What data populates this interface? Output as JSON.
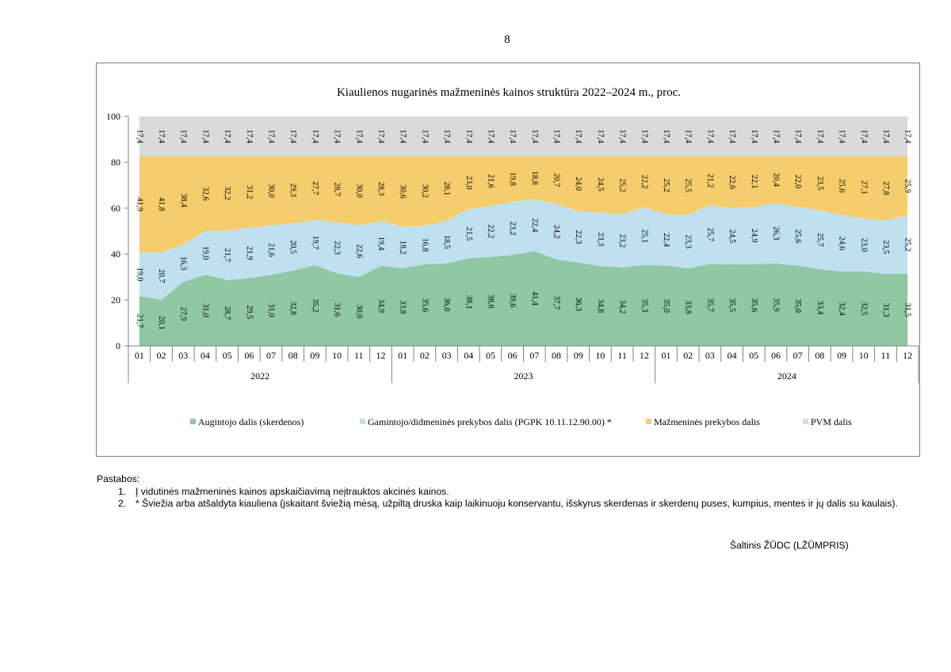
{
  "page_number": "8",
  "chart_data": {
    "type": "area",
    "stacked": true,
    "title": "Kiaulienos nugarinės mažmeninės kainos struktūra 2022–2024 m., proc.",
    "categories": [
      "01",
      "02",
      "03",
      "04",
      "05",
      "06",
      "07",
      "08",
      "09",
      "10",
      "11",
      "12",
      "01",
      "02",
      "03",
      "04",
      "05",
      "06",
      "07",
      "08",
      "09",
      "10",
      "11",
      "12",
      "01",
      "02",
      "03",
      "04",
      "05",
      "06",
      "07",
      "08",
      "09",
      "10",
      "11",
      "12"
    ],
    "year_groups": [
      {
        "label": "2022",
        "count": 12
      },
      {
        "label": "2023",
        "count": 12
      },
      {
        "label": "2024",
        "count": 12
      }
    ],
    "ylim": [
      0,
      100
    ],
    "yticks": [
      "0",
      "20",
      "40",
      "60",
      "80",
      "100"
    ],
    "grid": false,
    "legend_position": "bottom",
    "series": [
      {
        "name": "Augintojo dalis (skerdenos)",
        "color": "#8fc8a3",
        "values": [
          21.7,
          20.1,
          27.9,
          31.0,
          28.7,
          29.5,
          31.0,
          32.8,
          35.2,
          31.6,
          30.0,
          34.9,
          33.8,
          35.6,
          36.0,
          38.1,
          38.8,
          39.6,
          41.4,
          37.7,
          36.3,
          34.8,
          34.2,
          35.3,
          35.0,
          33.8,
          35.7,
          35.5,
          35.6,
          35.9,
          35.0,
          33.4,
          32.4,
          32.5,
          31.3,
          31.5
        ],
        "labels": [
          "21,7",
          "20,1",
          "27,9",
          "31,0",
          "28,7",
          "29,5",
          "31,0",
          "32,8",
          "35,2",
          "31,6",
          "30,0",
          "34,9",
          "33,8",
          "35,6",
          "36,0",
          "38,1",
          "38,8",
          "39,6",
          "41,4",
          "37,7",
          "36,3",
          "34,8",
          "34,2",
          "35,3",
          "35,0",
          "33,8",
          "35,7",
          "35,5",
          "35,6",
          "35,9",
          "35,0",
          "33,4",
          "32,4",
          "32,5",
          "31,3",
          "31,5"
        ]
      },
      {
        "name": "Gamintojo/didmeninės prekybos dalis (PGPK 10.11.12.90.00) *",
        "color": "#bfe0ef",
        "values": [
          19.0,
          20.7,
          16.3,
          19.0,
          21.7,
          21.9,
          21.6,
          20.5,
          19.7,
          22.3,
          22.6,
          19.4,
          18.2,
          16.8,
          18.5,
          21.5,
          22.2,
          23.2,
          22.4,
          24.2,
          22.3,
          23.3,
          23.2,
          25.1,
          22.4,
          23.3,
          25.7,
          24.5,
          24.9,
          26.3,
          25.6,
          25.7,
          24.6,
          23.0,
          23.5,
          25.2
        ],
        "labels": [
          "19,0",
          "20,7",
          "16,3",
          "19,0",
          "21,7",
          "21,9",
          "21,6",
          "20,5",
          "19,7",
          "22,3",
          "22,6",
          "19,4",
          "18,2",
          "16,8",
          "18,5",
          "21,5",
          "22,2",
          "23,2",
          "22,4",
          "24,2",
          "22,3",
          "23,3",
          "23,2",
          "25,1",
          "22,4",
          "23,3",
          "25,7",
          "24,5",
          "24,9",
          "26,3",
          "25,6",
          "25,7",
          "24,6",
          "23,0",
          "23,5",
          "25,2"
        ]
      },
      {
        "name": "Mažmeninės prekybos dalis",
        "color": "#f6cd6c",
        "values": [
          41.9,
          41.8,
          38.4,
          32.6,
          32.2,
          31.2,
          30.0,
          29.3,
          27.7,
          28.7,
          30.0,
          28.3,
          30.6,
          30.2,
          28.1,
          23.0,
          21.6,
          19.8,
          18.8,
          20.7,
          24.0,
          24.5,
          25.2,
          22.2,
          25.2,
          25.5,
          21.2,
          22.6,
          22.1,
          20.4,
          22.0,
          23.5,
          25.6,
          27.1,
          27.8,
          25.9
        ],
        "labels": [
          "41,9",
          "41,8",
          "38,4",
          "32,6",
          "32,2",
          "31,2",
          "30,0",
          "29,3",
          "27,7",
          "28,7",
          "30,0",
          "28,3",
          "30,6",
          "30,2",
          "28,1",
          "23,0",
          "21,6",
          "19,8",
          "18,8",
          "20,7",
          "24,0",
          "24,5",
          "25,2",
          "22,2",
          "25,2",
          "25,5",
          "21,2",
          "22,6",
          "22,1",
          "20,4",
          "22,0",
          "23,5",
          "25,6",
          "27,1",
          "27,8",
          "25,9"
        ]
      },
      {
        "name": "PVM dalis",
        "color": "#dadada",
        "values": [
          17.4,
          17.4,
          17.4,
          17.4,
          17.4,
          17.4,
          17.4,
          17.4,
          17.4,
          17.4,
          17.4,
          17.4,
          17.4,
          17.4,
          17.4,
          17.4,
          17.4,
          17.4,
          17.4,
          17.4,
          17.4,
          17.4,
          17.4,
          17.4,
          17.4,
          17.4,
          17.4,
          17.4,
          17.4,
          17.4,
          17.4,
          17.4,
          17.4,
          17.4,
          17.4,
          17.4
        ],
        "labels": [
          "17,4",
          "17,4",
          "17,4",
          "17,4",
          "17,4",
          "17,4",
          "17,4",
          "17,4",
          "17,4",
          "17,4",
          "17,4",
          "17,4",
          "17,4",
          "17,4",
          "17,4",
          "17,4",
          "17,4",
          "17,4",
          "17,4",
          "17,4",
          "17,4",
          "17,4",
          "17,4",
          "17,4",
          "17,4",
          "17,4",
          "17,4",
          "17,4",
          "17,4",
          "17,4",
          "17,4",
          "17,4",
          "17,4",
          "17,4",
          "17,4",
          "17,4"
        ]
      }
    ]
  },
  "notes": {
    "title": "Pastabos:",
    "items": [
      {
        "num": "1.",
        "text": "Į vidutinės mažmeninės kainos apskaičiavimą neįtrauktos akcinės kainos."
      },
      {
        "num": "2.",
        "text": "* Šviežia arba atšaldyta kiauliena (įskaitant šviežią mėsą, užpiltą druska kaip laikinuoju konservantu, išskyrus skerdenas ir skerdenų puses, kumpius, mentes ir jų dalis su kaulais)."
      }
    ]
  },
  "source": "Šaltinis ŽŪDC (LŽŪMPRIS)"
}
